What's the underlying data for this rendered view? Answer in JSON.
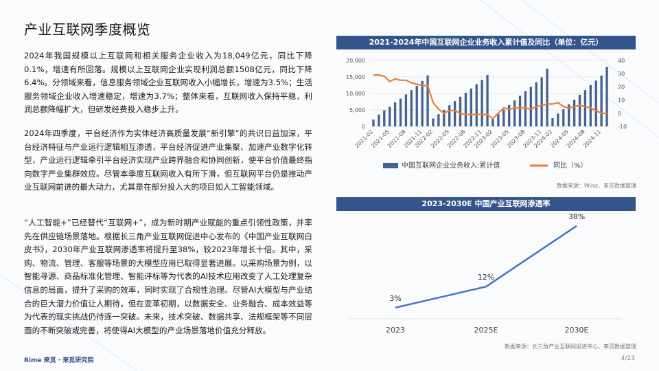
{
  "page": {
    "title": "产业互联网季度概览",
    "page_number": "4/23",
    "footer_logo": "Rime 来觅 · 来觅研究院"
  },
  "body": {
    "paragraph1": "2024年我国规模以上互联网和相关服务企业收入为18,049亿元，同比下降0.1%，增速有所回落。规模以上互联网企业实现利润总额1508亿元，同比下降6.4%。分领域来看，信息服务领域企业互联网收入小幅增长，增速为3.5%；生活服务领域企业收入增速稳定，增速为3.7%；整体来看，互联网收入保持平稳，利润总额降幅扩大，但研发经费投入稳步上升。",
    "paragraph2": "2024年四季度，平台经济作为实体经济高质量发展“新引擎”的共识日益加深，平台经济特征与产业运行逻辑相互渗透，平台经济促进产业集聚、加速产业数字化转型，产业运行逻辑牵引平台经济实现产业跨界融合和协同创新，使平台价值最终指向数字产业集群效应。尽管本季度互联网收入有所下滑，但互联网平台仍是推动产业互联网前进的最大动力，尤其是在部分投入大的项目如人工智能领域。",
    "paragraph3": "“人工智能+”已经替代“互联网+”，成为新时期产业赋能的重点引领性政策，并率先在供应链场景落地。根据长三角产业互联网促进中心发布的《中国产业互联网白皮书》，2030年产业互联网渗透率将提升至38%，较2023年增长十倍。其中，采购、物流、管理、客服等场景的大模型应用已取得显著进展。以采购场景为例，以智能寻源、商品标准化管理、智能评标等为代表的AI技术应用改变了人工处理复杂信息的局面，提升了采购的效率，同时实现了合规性治理。尽管AI大模型与产业结合的巨大潜力价值让人期待，但在变革初期，以数据安全、业务融合、成本效益等为代表的现实挑战仍待逐一突破。未来，技术突破、数据共享、法规框架等不同层面的不断突破或完善，将使得AI大模型的产业场景落地价值充分释放。"
  },
  "charts": {
    "chart1_header": "2021-2024年中国互联网企业业务收入累计值及同比（单位：亿元）",
    "chart1_source": "数据来源：Wind、来觅数据整理",
    "chart2_header": "2023-2030E 中国产业互联网渗透率",
    "chart2_source": "数据来源：长三角产业互联网促进中心、来觅数据整理"
  },
  "colors": {
    "header_bg": "#34558b",
    "bar": "#44628f",
    "line_orange": "#ed7d31",
    "line_blue": "#4472c4"
  },
  "chart_data": [
    {
      "type": "bar",
      "combo": "bar+line",
      "x": [
        "2021-02",
        "2021-03",
        "2021-04",
        "2021-05",
        "2021-06",
        "2021-07",
        "2021-08",
        "2021-09",
        "2021-10",
        "2021-11",
        "2021-12",
        "2022-02",
        "2022-03",
        "2022-04",
        "2022-05",
        "2022-06",
        "2022-07",
        "2022-08",
        "2022-09",
        "2022-10",
        "2022-11",
        "2022-12",
        "2023-02",
        "2023-03",
        "2023-04",
        "2023-05",
        "2023-06",
        "2023-07",
        "2023-08",
        "2023-09",
        "2023-10",
        "2023-11",
        "2023-12",
        "2024-02",
        "2024-03",
        "2024-04",
        "2024-05",
        "2024-06",
        "2024-07",
        "2024-08",
        "2024-09",
        "2024-10",
        "2024-11",
        "2024-12"
      ],
      "x_tick_labels": [
        "2021-02",
        "2021-05",
        "2021-08",
        "2021-11",
        "2022-02",
        "2022-05",
        "2022-08",
        "2022-11",
        "2023-02",
        "2023-05",
        "2023-08",
        "2023-11",
        "2024-02",
        "2024-05",
        "2024-08",
        "2024-11"
      ],
      "series": [
        {
          "name": "中国互联网企业业务收入:累计值",
          "axis": "left",
          "values": [
            2100,
            3600,
            4900,
            6000,
            7300,
            8400,
            9700,
            11000,
            12300,
            13800,
            15500,
            2400,
            3700,
            5000,
            6400,
            7700,
            9000,
            10200,
            11500,
            12800,
            14100,
            15600,
            2300,
            3700,
            5100,
            6500,
            7900,
            9300,
            10700,
            12000,
            13400,
            14900,
            17500,
            2500,
            3900,
            5200,
            6700,
            8100,
            9600,
            11000,
            12500,
            13900,
            15400,
            18049
          ]
        },
        {
          "name": "同比（%）",
          "axis": "right",
          "values": [
            29,
            29,
            28,
            24,
            26,
            25,
            25,
            23,
            22,
            21,
            21,
            8,
            3,
            0,
            2,
            2,
            0,
            -1,
            -1,
            -1,
            -1,
            -1,
            -4,
            0,
            4,
            3,
            4,
            4,
            4,
            3,
            5,
            6,
            7,
            7,
            8,
            5,
            4,
            5,
            6,
            5,
            4,
            2,
            0,
            -0.1
          ]
        }
      ],
      "ylim_left": [
        0,
        20000
      ],
      "ylim_right": [
        -10,
        40
      ],
      "y_left_ticks": [
        "0",
        "5,000",
        "10,000",
        "15,000",
        "20,000"
      ],
      "y_right_ticks": [
        "-10",
        "0",
        "10",
        "20",
        "30",
        "40"
      ],
      "legend": [
        "中国互联网企业业务收入:累计值",
        "同比（%）"
      ],
      "legend_position": "bottom",
      "grid": true
    },
    {
      "type": "line",
      "categories": [
        "2023",
        "2025E",
        "2030E"
      ],
      "values": [
        3,
        12,
        38
      ],
      "data_labels": [
        "3%",
        "12%",
        "38%"
      ],
      "ylim": [
        0,
        40
      ],
      "grid": false
    }
  ]
}
